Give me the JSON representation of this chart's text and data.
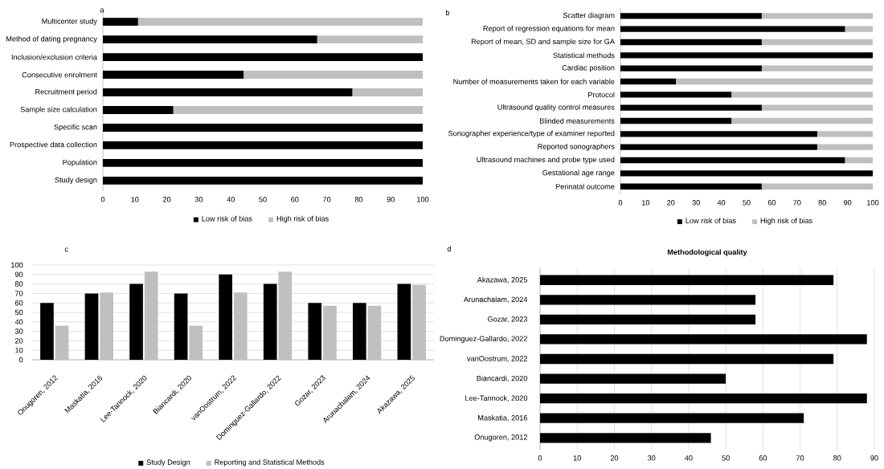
{
  "chart_data": [
    {
      "type": "bar",
      "orientation": "horizontal",
      "stacked": true,
      "legend": "bottom",
      "annotations": [
        "a"
      ],
      "categories": [
        "Multicenter study",
        "Method of dating pregnancy",
        "Inclusion/exclusion criteria",
        "Consecutive enrolment",
        "Recruitment period",
        "Sample size calculation",
        "Specific scan",
        "Prospective data collection",
        "Population",
        "Study design"
      ],
      "series": [
        {
          "name": "Low risk of bias",
          "color": "#000000",
          "values": [
            11,
            67,
            100,
            44,
            78,
            22,
            100,
            100,
            100,
            100
          ]
        },
        {
          "name": "High risk of bias",
          "color": "#bfbfbf",
          "values": [
            89,
            33,
            0,
            56,
            22,
            78,
            0,
            0,
            0,
            0
          ]
        }
      ],
      "xlim": [
        0,
        100
      ],
      "xticks": [
        0,
        10,
        20,
        30,
        40,
        50,
        60,
        70,
        80,
        90,
        100
      ]
    },
    {
      "type": "bar",
      "orientation": "horizontal",
      "stacked": true,
      "legend": "bottom",
      "annotations": [
        "b"
      ],
      "categories": [
        "Scatter diagram",
        "Report of regression equations for mean",
        "Report of mean, SD and sample size for GA",
        "Statistical methods",
        "Cardiac position",
        "Number of measurements taken for each variable",
        "Protocol",
        "Ultrasound quality control measures",
        "Blinded measurements",
        "Sonographer experience/type of examiner reported",
        "Reported sonographers",
        "Ultrasound machines and probe type used",
        "Gestational age range",
        "Perinatal outcome"
      ],
      "series": [
        {
          "name": "Low risk of bias",
          "color": "#000000",
          "values": [
            56,
            89,
            56,
            100,
            56,
            22,
            44,
            56,
            44,
            78,
            78,
            89,
            100,
            56
          ]
        },
        {
          "name": "High risk of bias",
          "color": "#bfbfbf",
          "values": [
            44,
            11,
            44,
            0,
            44,
            78,
            56,
            44,
            56,
            22,
            22,
            11,
            0,
            44
          ]
        }
      ],
      "xlim": [
        0,
        100
      ],
      "xticks": [
        0,
        10,
        20,
        30,
        40,
        50,
        60,
        70,
        80,
        90,
        100
      ]
    },
    {
      "type": "bar",
      "legend": "bottom",
      "grid": "y",
      "annotations": [
        "c"
      ],
      "categories": [
        "Onugoren, 2012",
        "Maskatia, 2016",
        "Lee-Tannock, 2020",
        "Biancardi, 2020",
        "vanOostrum, 2022",
        "Dominguez-Gallardo, 2022",
        "Gozar, 2023",
        "Arunachalam, 2024",
        "Akazawa, 2025"
      ],
      "series": [
        {
          "name": "Study Design",
          "color": "#000000",
          "values": [
            60,
            70,
            80,
            70,
            90,
            80,
            60,
            60,
            80
          ]
        },
        {
          "name": "Reporting and Statistical Methods",
          "color": "#bfbfbf",
          "values": [
            36,
            71,
            93,
            36,
            71,
            93,
            57,
            57,
            79
          ]
        }
      ],
      "ylim": [
        0,
        100
      ],
      "yticks": [
        0,
        10,
        20,
        30,
        40,
        50,
        60,
        70,
        80,
        90,
        100
      ]
    },
    {
      "type": "bar",
      "orientation": "horizontal",
      "grid": "x",
      "title": "Methodological quality",
      "annotations": [
        "d"
      ],
      "categories": [
        "Akazawa, 2025",
        "Arunachalam, 2024",
        "Gozar, 2023",
        "Dominguez-Gallardo, 2022",
        "vanOostrum, 2022",
        "Biancardi, 2020",
        "Lee-Tannock,  2020",
        "Maskatia, 2016",
        "Onugoren, 2012"
      ],
      "series": [
        {
          "color": "#000000",
          "values": [
            79,
            58,
            58,
            88,
            79,
            50,
            88,
            71,
            46
          ]
        }
      ],
      "xlim": [
        0,
        90
      ],
      "xticks": [
        0,
        10,
        20,
        30,
        40,
        50,
        60,
        70,
        80,
        90
      ]
    }
  ]
}
